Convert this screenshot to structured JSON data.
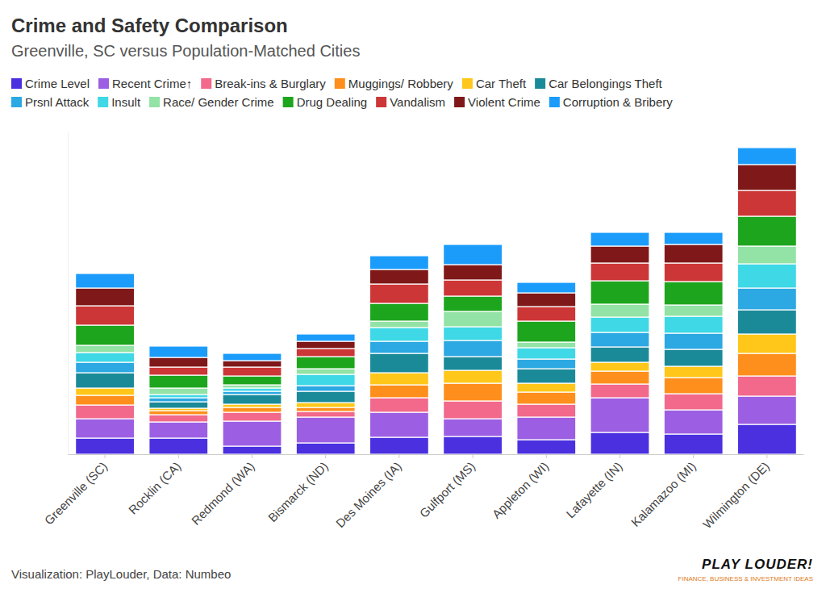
{
  "chart_data": {
    "type": "bar",
    "stacked": true,
    "title": "Crime and Safety Comparison",
    "subtitle": "Greenville, SC versus Population-Matched Cities",
    "source": "Visualization: PlayLouder, Data: Numbeo",
    "annotations": [
      "PLAY LOUDER!",
      "FINANCE, BUSINESS & INVESTMENT IDEAS"
    ],
    "legend": "top-left",
    "grid": false,
    "tick_labels": "x",
    "ylim": [
      0,
      400
    ],
    "categories": [
      "Greenville (SC)",
      "Rocklin (CA)",
      "Redmond (WA)",
      "Bismarck (ND)",
      "Des Moines (IA)",
      "Gulfport (MS)",
      "Appleton (WI)",
      "Lafayette (IN)",
      "Kalamazoo (MI)",
      "Wilmington (DE)"
    ],
    "series": [
      {
        "name": "Crime Level",
        "color": "#4b30e0",
        "values": [
          20,
          20,
          10,
          14,
          21,
          22,
          18,
          27,
          25,
          37
        ]
      },
      {
        "name": "Recent Crime↑",
        "color": "#9c5fe3",
        "values": [
          24,
          20,
          31,
          32,
          31,
          22,
          28,
          43,
          30,
          35
        ]
      },
      {
        "name": "Break-ins & Burglary",
        "color": "#f2698b",
        "values": [
          17,
          9,
          11,
          7,
          18,
          22,
          16,
          17,
          20,
          25
        ]
      },
      {
        "name": "Muggings/ Robbery",
        "color": "#ff8f1c",
        "values": [
          12,
          5,
          6,
          5,
          16,
          22,
          15,
          16,
          20,
          28
        ]
      },
      {
        "name": "Car Theft",
        "color": "#ffc719",
        "values": [
          9,
          3,
          4,
          6,
          15,
          16,
          11,
          11,
          14,
          24
        ]
      },
      {
        "name": "Car Belongings Theft",
        "color": "#1b8a98",
        "values": [
          19,
          8,
          12,
          14,
          24,
          17,
          18,
          19,
          21,
          30
        ]
      },
      {
        "name": "Prsnl Attack",
        "color": "#2ca8e2",
        "values": [
          13,
          5,
          4,
          7,
          15,
          20,
          12,
          18,
          20,
          27
        ]
      },
      {
        "name": "Insult",
        "color": "#3ed8e6",
        "values": [
          12,
          4,
          4,
          14,
          17,
          17,
          14,
          19,
          21,
          30
        ]
      },
      {
        "name": "Race/ Gender Crime",
        "color": "#92e3a5",
        "values": [
          9,
          8,
          4,
          7,
          8,
          19,
          7,
          16,
          14,
          22
        ]
      },
      {
        "name": "Drug Dealing",
        "color": "#1ea51e",
        "values": [
          25,
          16,
          11,
          15,
          22,
          19,
          26,
          29,
          29,
          37
        ]
      },
      {
        "name": "Vandalism",
        "color": "#cc3636",
        "values": [
          24,
          10,
          11,
          10,
          24,
          20,
          18,
          22,
          23,
          32
        ]
      },
      {
        "name": "Violent Crime",
        "color": "#7f1818",
        "values": [
          22,
          12,
          8,
          9,
          18,
          19,
          17,
          21,
          23,
          32
        ]
      },
      {
        "name": "Corruption & Bribery",
        "color": "#1b9cfb",
        "values": [
          18,
          14,
          9,
          9,
          17,
          25,
          13,
          17,
          15,
          21
        ]
      }
    ]
  }
}
